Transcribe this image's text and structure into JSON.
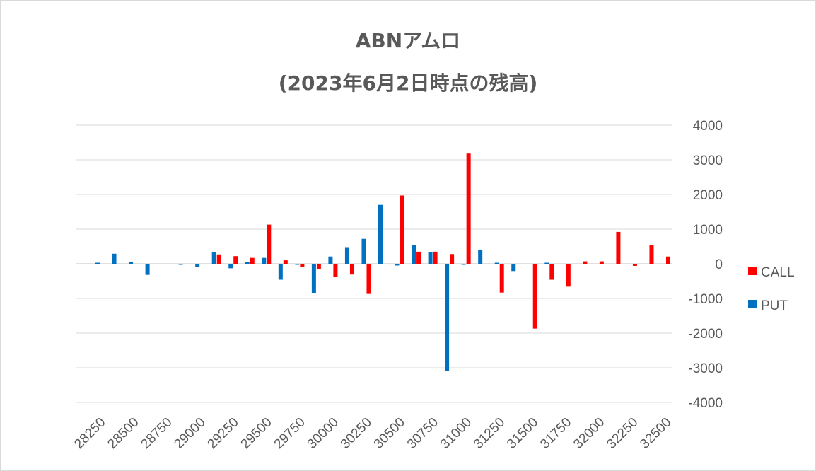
{
  "chart_data": {
    "type": "bar",
    "title": "ABNアムロ",
    "subtitle": "(2023年6月2日時点の残高)",
    "x": [
      28250,
      28375,
      28500,
      28625,
      28750,
      28875,
      29000,
      29125,
      29250,
      29375,
      29500,
      29625,
      29750,
      29875,
      30000,
      30125,
      30250,
      30375,
      30500,
      30625,
      30750,
      30875,
      31000,
      31125,
      31250,
      31375,
      31500,
      31625,
      31750,
      31875,
      32000,
      32125,
      32250,
      32375,
      32500
    ],
    "x_tick_labels": [
      "28250",
      "28500",
      "28750",
      "29000",
      "29250",
      "29500",
      "29750",
      "30000",
      "30250",
      "30500",
      "30750",
      "31000",
      "31250",
      "31500",
      "31750",
      "32000",
      "32250",
      "32500"
    ],
    "series": [
      {
        "name": "CALL",
        "color": "#ff0000",
        "values": [
          0,
          0,
          0,
          0,
          0,
          0,
          0,
          270,
          220,
          170,
          1130,
          100,
          -100,
          -150,
          -380,
          -310,
          -870,
          0,
          1970,
          350,
          350,
          280,
          3180,
          0,
          -830,
          0,
          -1870,
          -460,
          -660,
          70,
          70,
          920,
          -60,
          540,
          210
        ]
      },
      {
        "name": "PUT",
        "color": "#0070c0",
        "values": [
          30,
          290,
          50,
          -320,
          0,
          -30,
          -100,
          330,
          -130,
          50,
          170,
          -460,
          -30,
          -850,
          210,
          480,
          720,
          1700,
          -50,
          540,
          330,
          -3100,
          -30,
          410,
          30,
          -210,
          0,
          30,
          0,
          0,
          0,
          0,
          0,
          0,
          0
        ]
      }
    ],
    "ylim": [
      -4000,
      4000
    ],
    "y_ticks": [
      "-4000",
      "-3000",
      "-2000",
      "-1000",
      "0",
      "1000",
      "2000",
      "3000",
      "4000"
    ],
    "grid": true,
    "y_axis_position": "right",
    "legend_position": "right"
  }
}
